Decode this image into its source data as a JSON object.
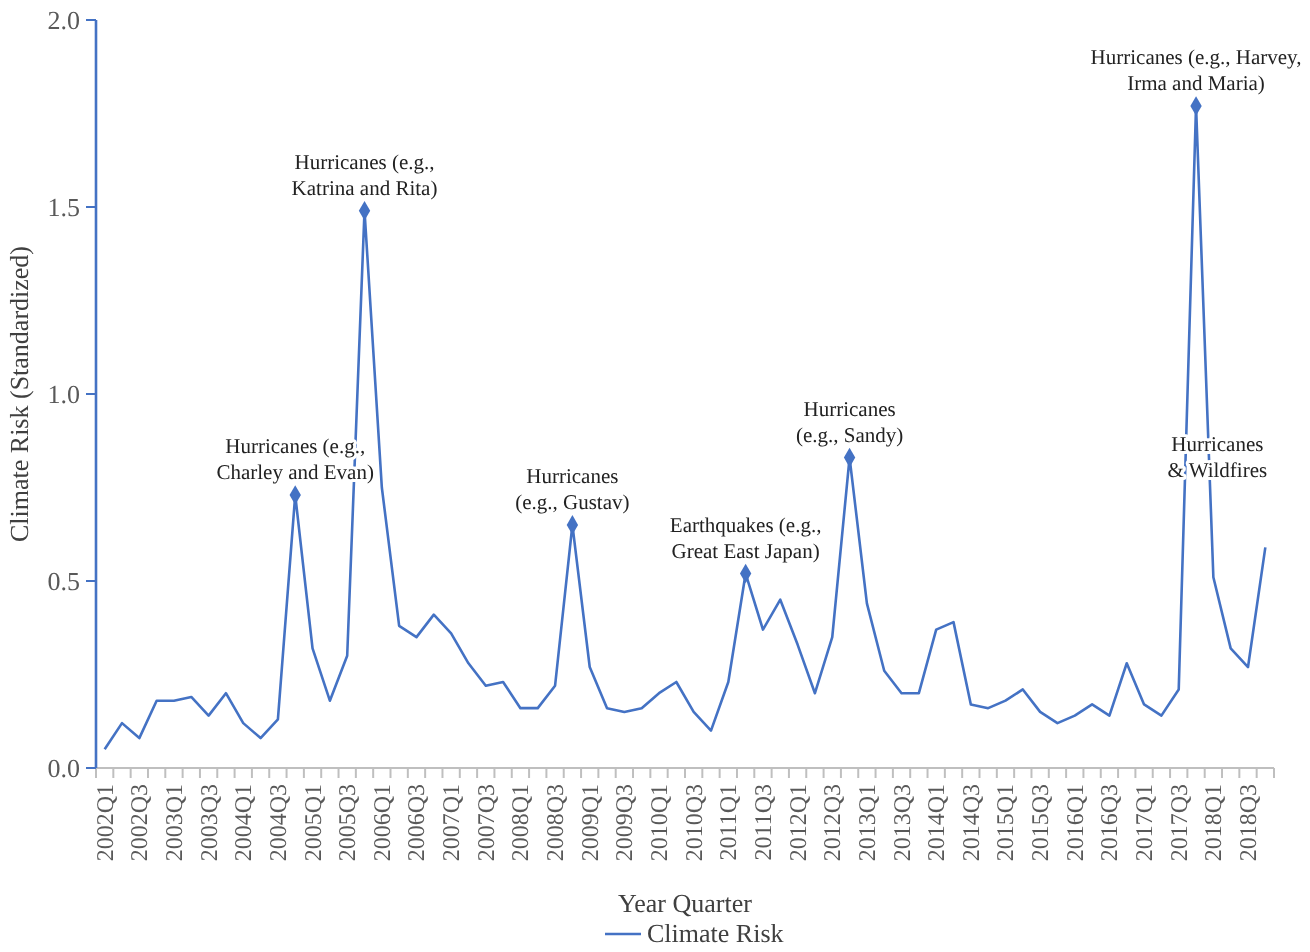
{
  "chart_data": {
    "type": "line",
    "xlabel": "Year Quarter",
    "ylabel": "Climate Risk (Standardized)",
    "categories": [
      "2002Q1",
      null,
      "2002Q3",
      null,
      "2003Q1",
      null,
      "2003Q3",
      null,
      "2004Q1",
      null,
      "2004Q3",
      null,
      "2005Q1",
      null,
      "2005Q3",
      null,
      "2006Q1",
      null,
      "2006Q3",
      null,
      "2007Q1",
      null,
      "2007Q3",
      null,
      "2008Q1",
      null,
      "2008Q3",
      null,
      "2009Q1",
      null,
      "2009Q3",
      null,
      "2010Q1",
      null,
      "2010Q3",
      null,
      "2011Q1",
      null,
      "2011Q3",
      null,
      "2012Q1",
      null,
      "2012Q3",
      null,
      "2013Q1",
      null,
      "2013Q3",
      null,
      "2014Q1",
      null,
      "2014Q3",
      null,
      "2015Q1",
      null,
      "2015Q3",
      null,
      "2016Q1",
      null,
      "2016Q3",
      null,
      "2017Q1",
      null,
      "2017Q3",
      null,
      "2018Q1",
      null,
      "2018Q3",
      null
    ],
    "series": [
      {
        "name": "Climate Risk",
        "color": "#4472c4",
        "values": [
          0.05,
          0.12,
          0.08,
          0.18,
          0.18,
          0.19,
          0.14,
          0.2,
          0.12,
          0.08,
          0.13,
          0.73,
          0.32,
          0.18,
          0.3,
          1.49,
          0.75,
          0.38,
          0.35,
          0.41,
          0.36,
          0.28,
          0.22,
          0.23,
          0.16,
          0.16,
          0.22,
          0.65,
          0.27,
          0.16,
          0.15,
          0.16,
          0.2,
          0.23,
          0.15,
          0.1,
          0.23,
          0.52,
          0.37,
          0.45,
          0.33,
          0.2,
          0.35,
          0.83,
          0.44,
          0.26,
          0.2,
          0.2,
          0.37,
          0.39,
          0.17,
          0.16,
          0.18,
          0.21,
          0.15,
          0.12,
          0.14,
          0.17,
          0.14,
          0.28,
          0.17,
          0.14,
          0.21,
          1.77,
          0.51,
          0.32,
          0.27,
          0.59
        ]
      }
    ],
    "ylim": [
      0,
      2
    ],
    "yticks": [
      {
        "value": 0,
        "label": "0.0"
      },
      {
        "value": 0.5,
        "label": "0.5"
      },
      {
        "value": 1,
        "label": "1.0"
      },
      {
        "value": 1.5,
        "label": "1.5"
      },
      {
        "value": 2,
        "label": "2.0"
      }
    ],
    "grid": false,
    "legend": "bottom",
    "line_style": "solid",
    "annotations": [
      {
        "text": "Hurricanes (e.g.,\nCharley and Evan)",
        "y": 0.73
      },
      {
        "text": "Hurricanes (e.g.,\nKatrina and Rita)",
        "y": 1.49
      },
      {
        "text": "Hurricanes\n(e.g., Gustav)",
        "y": 0.65
      },
      {
        "text": "Earthquakes (e.g.,\nGreat East Japan)",
        "y": 0.52
      },
      {
        "text": "Hurricanes\n(e.g., Sandy)",
        "y": 0.83
      },
      {
        "text": "Hurricanes (e.g., Harvey,\nIrma and Maria)",
        "y": 1.77
      },
      "Hurricanes\n& Wildfires"
    ]
  }
}
